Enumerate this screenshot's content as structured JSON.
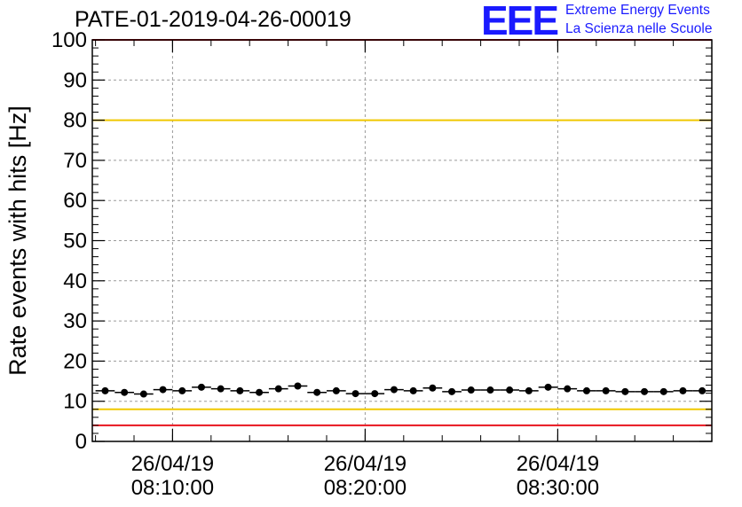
{
  "header": {
    "title": "PATE-01-2019-04-26-00019",
    "logo_mark": "EEE",
    "logo_line1": "Extreme Energy Events",
    "logo_line2": "La Scienza nelle Scuole"
  },
  "colors": {
    "logo": "#1a1aff",
    "data": "#000000",
    "grid": "#9a9a9a",
    "red_line": "#e8141e",
    "yellow_line": "#f0c800"
  },
  "chart_data": {
    "type": "scatter",
    "ylabel": "Rate events with hits [Hz]",
    "ylim": [
      0,
      100
    ],
    "y_ticks": [
      0,
      10,
      20,
      30,
      40,
      50,
      60,
      70,
      80,
      90,
      100
    ],
    "xlim": [
      "2019-04-26 08:05:50",
      "2019-04-26 08:38:00"
    ],
    "x_ticks": [
      {
        "date": "26/04/19",
        "time": "08:10:00"
      },
      {
        "date": "26/04/19",
        "time": "08:20:00"
      },
      {
        "date": "26/04/19",
        "time": "08:30:00"
      }
    ],
    "grid": true,
    "reference_lines": [
      {
        "y": 100,
        "color": "red"
      },
      {
        "y": 80,
        "color": "yellow"
      },
      {
        "y": 8,
        "color": "yellow"
      },
      {
        "y": 4,
        "color": "red"
      }
    ],
    "series": [
      {
        "x": [
          "08:06:30",
          "08:07:30",
          "08:08:30",
          "08:09:30",
          "08:10:30",
          "08:11:30",
          "08:12:30",
          "08:13:30",
          "08:14:30",
          "08:15:30",
          "08:16:30",
          "08:17:30",
          "08:18:30",
          "08:19:30",
          "08:20:30",
          "08:21:30",
          "08:22:30",
          "08:23:30",
          "08:24:30",
          "08:25:30",
          "08:26:30",
          "08:27:30",
          "08:28:30",
          "08:29:30",
          "08:30:30",
          "08:31:30",
          "08:32:30",
          "08:33:30",
          "08:34:30",
          "08:35:30",
          "08:36:30",
          "08:37:30"
        ],
        "values": [
          12.6,
          12.2,
          11.8,
          12.9,
          12.6,
          13.5,
          13.1,
          12.6,
          12.2,
          13.1,
          13.8,
          12.2,
          12.6,
          11.9,
          11.9,
          12.9,
          12.6,
          13.3,
          12.4,
          12.8,
          12.8,
          12.8,
          12.6,
          13.5,
          13.1,
          12.6,
          12.6,
          12.4,
          12.4,
          12.4,
          12.6,
          12.6
        ]
      }
    ]
  }
}
